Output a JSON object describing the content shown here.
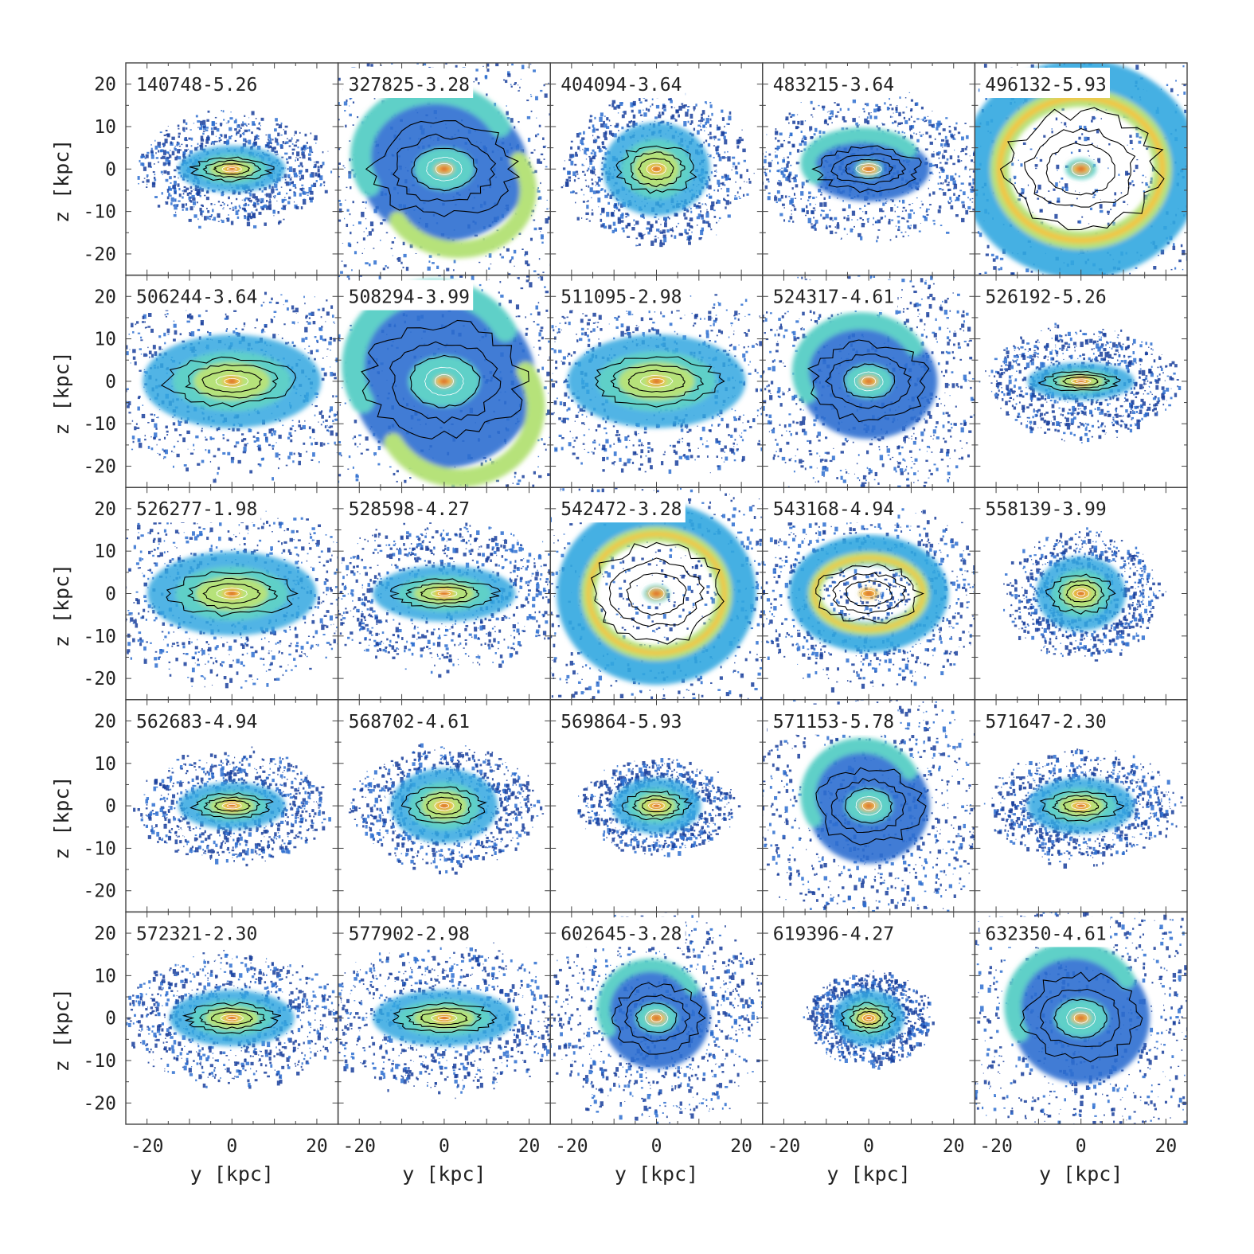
{
  "chart_data": {
    "type": "heatmap",
    "layout": {
      "rows": 5,
      "cols": 5
    },
    "xlabel": "y [kpc]",
    "ylabel": "z [kpc]",
    "xlim": [
      -25,
      25
    ],
    "ylim": [
      -25,
      25
    ],
    "x_ticks": [
      -20,
      0,
      20
    ],
    "y_ticks": [
      -20,
      -10,
      0,
      10,
      20
    ],
    "colormap": [
      "#1a3f9c",
      "#2e6fd0",
      "#31a7e0",
      "#5fd0c8",
      "#b6e27a",
      "#f4c43c",
      "#e8772a",
      "#c0342a"
    ],
    "contour_color": "#000000",
    "panels": [
      {
        "label": "140748-5.26",
        "x_extent": [
          -12,
          12
        ],
        "z_extent": [
          -5,
          5
        ],
        "peak": [
          0,
          0
        ],
        "feature": "compact-disk"
      },
      {
        "label": "327825-3.28",
        "x_extent": [
          -22,
          22
        ],
        "z_extent": [
          -20,
          20
        ],
        "peak": [
          0,
          0
        ],
        "feature": "spiral"
      },
      {
        "label": "404094-3.64",
        "x_extent": [
          -12,
          12
        ],
        "z_extent": [
          -10,
          10
        ],
        "peak": [
          0,
          0
        ],
        "feature": "compact-disk"
      },
      {
        "label": "483215-3.64",
        "x_extent": [
          -20,
          12
        ],
        "z_extent": [
          -6,
          12
        ],
        "peak": [
          0,
          0
        ],
        "feature": "arc"
      },
      {
        "label": "496132-5.93",
        "x_extent": [
          -24,
          24
        ],
        "z_extent": [
          -24,
          24
        ],
        "peak": [
          0,
          0
        ],
        "feature": "ring"
      },
      {
        "label": "506244-3.64",
        "x_extent": [
          -20,
          20
        ],
        "z_extent": [
          -10,
          10
        ],
        "peak": [
          0,
          0
        ],
        "feature": "disk"
      },
      {
        "label": "508294-3.99",
        "x_extent": [
          -24,
          24
        ],
        "z_extent": [
          -24,
          24
        ],
        "peak": [
          0,
          0
        ],
        "feature": "spiral"
      },
      {
        "label": "511095-2.98",
        "x_extent": [
          -22,
          18
        ],
        "z_extent": [
          -10,
          10
        ],
        "peak": [
          0,
          0
        ],
        "feature": "disk"
      },
      {
        "label": "524317-4.61",
        "x_extent": [
          -18,
          18
        ],
        "z_extent": [
          -16,
          16
        ],
        "peak": [
          0,
          0
        ],
        "feature": "arc"
      },
      {
        "label": "526192-5.26",
        "x_extent": [
          -12,
          12
        ],
        "z_extent": [
          -4,
          4
        ],
        "peak": [
          0,
          0
        ],
        "feature": "compact-disk"
      },
      {
        "label": "526277-1.98",
        "x_extent": [
          -20,
          18
        ],
        "z_extent": [
          -8,
          10
        ],
        "peak": [
          0,
          0
        ],
        "feature": "disk"
      },
      {
        "label": "528598-4.27",
        "x_extent": [
          -18,
          14
        ],
        "z_extent": [
          -6,
          6
        ],
        "peak": [
          0,
          0
        ],
        "feature": "disk"
      },
      {
        "label": "542472-3.28",
        "x_extent": [
          -20,
          20
        ],
        "z_extent": [
          -20,
          20
        ],
        "peak": [
          0,
          0
        ],
        "feature": "ring"
      },
      {
        "label": "543168-4.94",
        "x_extent": [
          -16,
          16
        ],
        "z_extent": [
          -12,
          12
        ],
        "peak": [
          0,
          0
        ],
        "feature": "ring"
      },
      {
        "label": "558139-3.99",
        "x_extent": [
          -10,
          10
        ],
        "z_extent": [
          -8,
          8
        ],
        "peak": [
          0,
          0
        ],
        "feature": "compact-disk"
      },
      {
        "label": "562683-4.94",
        "x_extent": [
          -12,
          12
        ],
        "z_extent": [
          -5,
          5
        ],
        "peak": [
          0,
          0
        ],
        "feature": "compact-disk"
      },
      {
        "label": "568702-4.61",
        "x_extent": [
          -12,
          12
        ],
        "z_extent": [
          -8,
          8
        ],
        "peak": [
          0,
          0
        ],
        "feature": "compact-disk"
      },
      {
        "label": "569864-5.93",
        "x_extent": [
          -10,
          10
        ],
        "z_extent": [
          -6,
          6
        ],
        "peak": [
          0,
          0
        ],
        "feature": "compact-disk"
      },
      {
        "label": "571153-5.78",
        "x_extent": [
          -16,
          16
        ],
        "z_extent": [
          -16,
          16
        ],
        "peak": [
          0,
          0
        ],
        "feature": "arc"
      },
      {
        "label": "571647-2.30",
        "x_extent": [
          -12,
          12
        ],
        "z_extent": [
          -6,
          6
        ],
        "peak": [
          0,
          0
        ],
        "feature": "compact-disk"
      },
      {
        "label": "572321-2.30",
        "x_extent": [
          -14,
          14
        ],
        "z_extent": [
          -6,
          6
        ],
        "peak": [
          0,
          0
        ],
        "feature": "disk"
      },
      {
        "label": "577902-2.98",
        "x_extent": [
          -16,
          16
        ],
        "z_extent": [
          -6,
          6
        ],
        "peak": [
          0,
          0
        ],
        "feature": "disk"
      },
      {
        "label": "602645-3.28",
        "x_extent": [
          -14,
          14
        ],
        "z_extent": [
          -14,
          14
        ],
        "peak": [
          0,
          0
        ],
        "feature": "arc"
      },
      {
        "label": "619396-4.27",
        "x_extent": [
          -8,
          8
        ],
        "z_extent": [
          -6,
          6
        ],
        "peak": [
          0,
          0
        ],
        "feature": "compact-disk"
      },
      {
        "label": "632350-4.61",
        "x_extent": [
          -18,
          18
        ],
        "z_extent": [
          -18,
          18
        ],
        "peak": [
          0,
          0
        ],
        "feature": "arc"
      }
    ]
  }
}
